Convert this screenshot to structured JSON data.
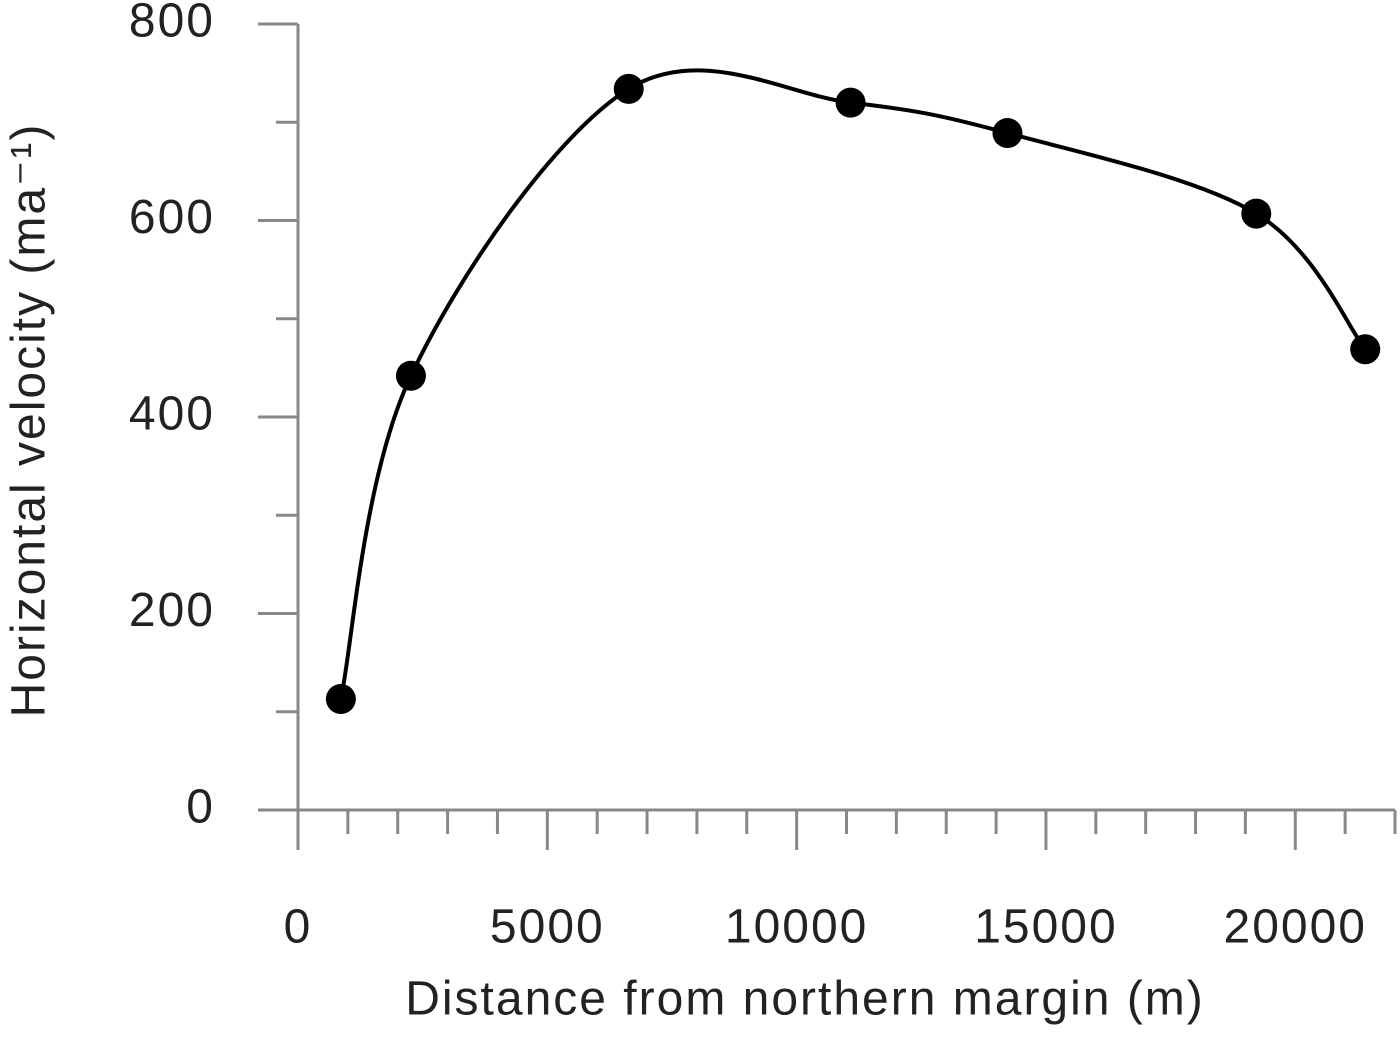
{
  "chart_data": {
    "type": "line",
    "x_label": "Distance from northern margin (m)",
    "y_label": "Horizontal velocity (ma⁻¹)",
    "x": [
      860,
      2265,
      6633,
      11082,
      14228,
      19218,
      21403
    ],
    "series": [
      {
        "color": "#000000",
        "values": [
          113,
          442,
          734,
          720,
          689,
          607,
          469
        ]
      }
    ],
    "xlim": [
      0,
      22000
    ],
    "ylim": [
      0,
      800
    ],
    "xticks": [
      0,
      5000,
      10000,
      15000,
      20000
    ],
    "yticks": [
      0,
      200,
      400,
      600,
      800
    ],
    "xminor_ticks": [
      1000,
      2000,
      3000,
      4000,
      6000,
      7000,
      8000,
      9000,
      11000,
      12000,
      13000,
      14000,
      16000,
      17000,
      18000,
      19000,
      21000,
      22000
    ],
    "yminor_ticks": [
      100,
      300,
      500,
      700
    ],
    "axis_color": "#888888",
    "smooth": true,
    "markers": true
  }
}
